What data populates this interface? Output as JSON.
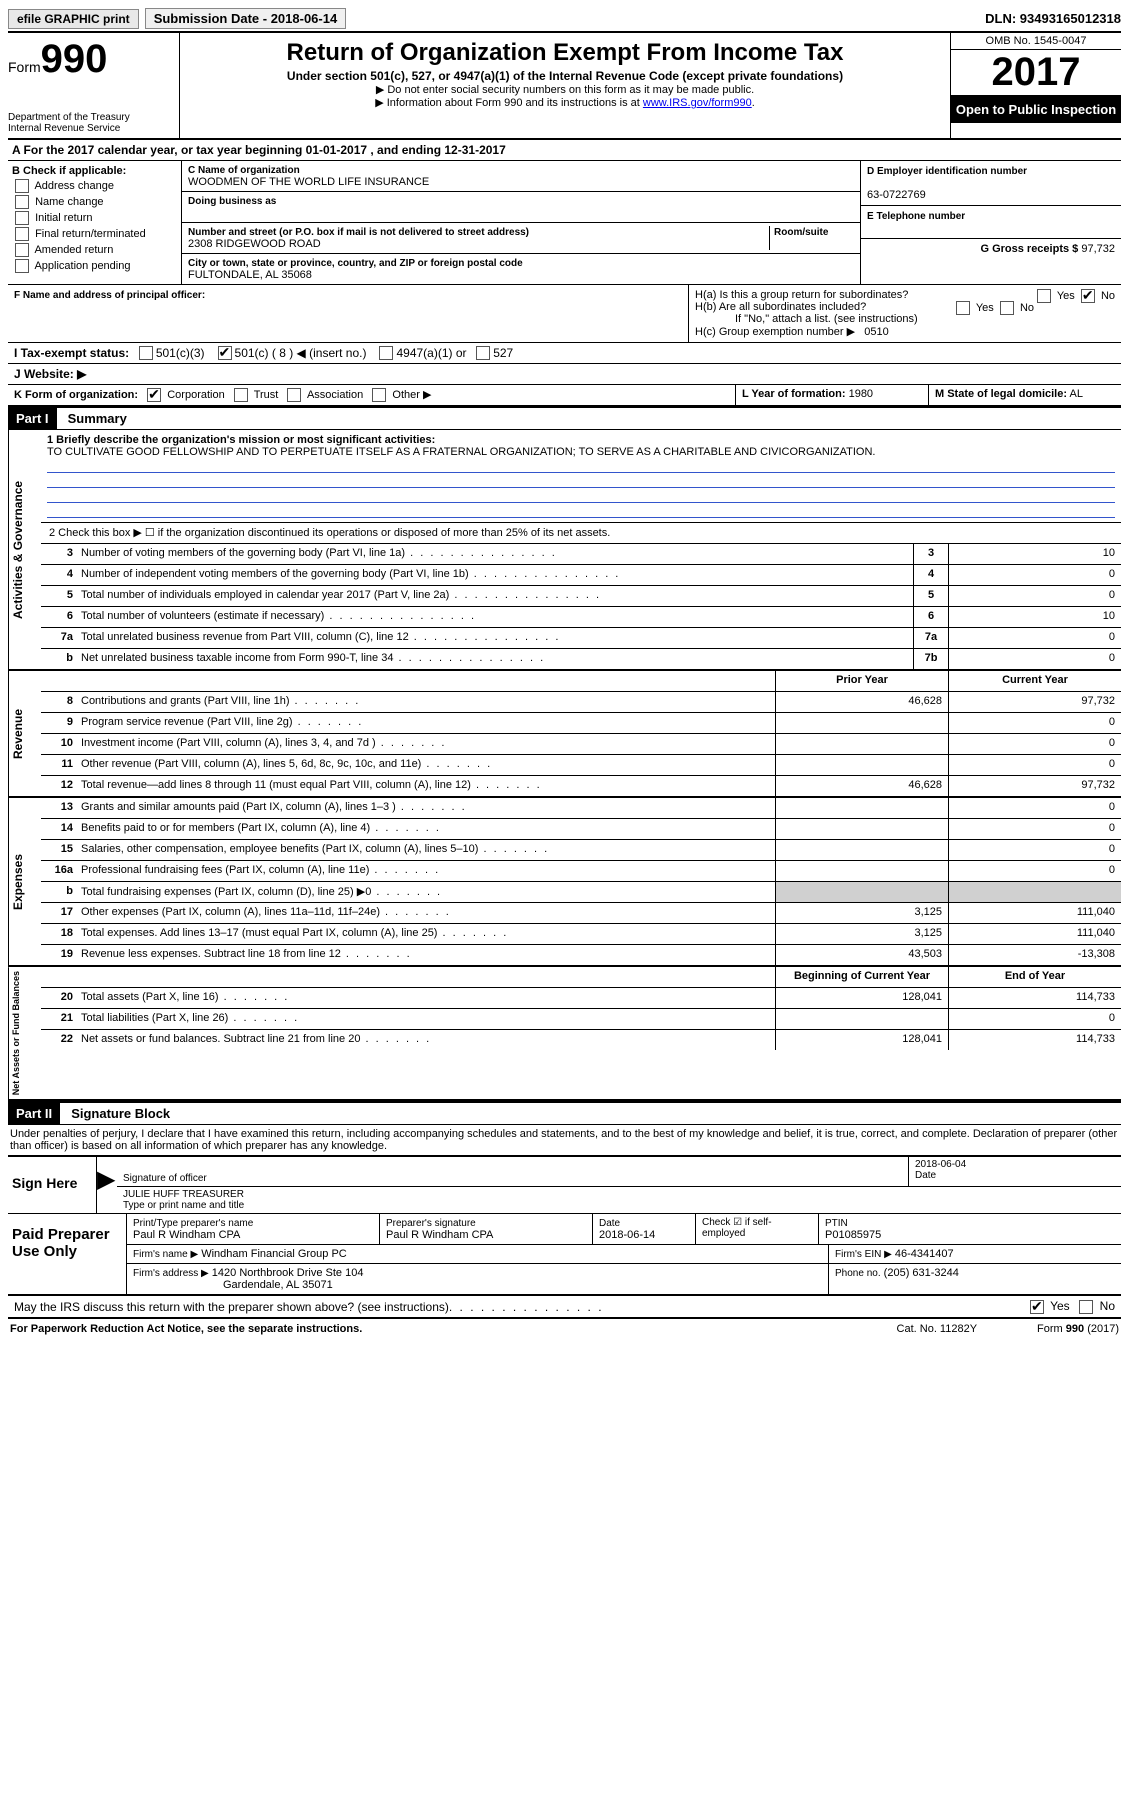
{
  "topbar": {
    "efile": "efile GRAPHIC print",
    "subdate_label": "Submission Date - 2018-06-14",
    "dln": "DLN: 93493165012318"
  },
  "header": {
    "form_word": "Form",
    "form_num": "990",
    "dept": "Department of the Treasury",
    "irs": "Internal Revenue Service",
    "title": "Return of Organization Exempt From Income Tax",
    "subtitle": "Under section 501(c), 527, or 4947(a)(1) of the Internal Revenue Code (except private foundations)",
    "note1": "▶ Do not enter social security numbers on this form as it may be made public.",
    "note2_pre": "▶ Information about Form 990 and its instructions is at ",
    "note2_link": "www.IRS.gov/form990",
    "omb": "OMB No. 1545-0047",
    "year": "2017",
    "open": "Open to Public Inspection"
  },
  "rowA": "A  For the 2017 calendar year, or tax year beginning 01-01-2017   , and ending 12-31-2017",
  "sectionB": {
    "title": "B Check if applicable:",
    "items": [
      "Address change",
      "Name change",
      "Initial return",
      "Final return/terminated",
      "Amended return",
      "Application pending"
    ]
  },
  "sectionC": {
    "name_lbl": "C Name of organization",
    "name": "WOODMEN OF THE WORLD LIFE INSURANCE",
    "dba_lbl": "Doing business as",
    "dba": "",
    "addr_lbl": "Number and street (or P.O. box if mail is not delivered to street address)",
    "room_lbl": "Room/suite",
    "addr": "2308 RIDGEWOOD ROAD",
    "city_lbl": "City or town, state or province, country, and ZIP or foreign postal code",
    "city": "FULTONDALE, AL  35068",
    "f_lbl": "F Name and address of principal officer:",
    "f_val": ""
  },
  "sectionD": {
    "ein_lbl": "D Employer identification number",
    "ein": "63-0722769",
    "tel_lbl": "E Telephone number",
    "tel": "",
    "gross_lbl": "G Gross receipts $",
    "gross": "97,732"
  },
  "sectionH": {
    "ha": "H(a)  Is this a group return for subordinates?",
    "hb": "H(b)  Are all subordinates included?",
    "hb_note": "If \"No,\" attach a list. (see instructions)",
    "hc": "H(c)  Group exemption number ▶",
    "hc_val": "0510"
  },
  "rowI": {
    "label": "I  Tax-exempt status:",
    "o1": "501(c)(3)",
    "o2": "501(c) ( 8 ) ◀ (insert no.)",
    "o3": "4947(a)(1) or",
    "o4": "527"
  },
  "rowJ": "J  Website: ▶",
  "rowK": {
    "label": "K Form of organization:",
    "o1": "Corporation",
    "o2": "Trust",
    "o3": "Association",
    "o4": "Other ▶"
  },
  "rowL": {
    "label": "L Year of formation:",
    "val": "1980"
  },
  "rowM": {
    "label": "M State of legal domicile:",
    "val": "AL"
  },
  "part1": {
    "hdr": "Part I",
    "title": "Summary",
    "line1_lbl": "1 Briefly describe the organization's mission or most significant activities:",
    "line1_txt": "TO CULTIVATE GOOD FELLOWSHIP AND TO PERPETUATE ITSELF AS A FRATERNAL ORGANIZATION; TO SERVE AS A CHARITABLE AND CIVICORGANIZATION.",
    "line2": "2  Check this box ▶ ☐  if the organization discontinued its operations or disposed of more than 25% of its net assets.",
    "vtab1": "Activities & Governance",
    "vtab2": "Revenue",
    "vtab3": "Expenses",
    "vtab4": "Net Assets or Fund Balances",
    "rows_top": [
      {
        "n": "3",
        "t": "Number of voting members of the governing body (Part VI, line 1a)",
        "box": "3",
        "v": "10"
      },
      {
        "n": "4",
        "t": "Number of independent voting members of the governing body (Part VI, line 1b)",
        "box": "4",
        "v": "0"
      },
      {
        "n": "5",
        "t": "Total number of individuals employed in calendar year 2017 (Part V, line 2a)",
        "box": "5",
        "v": "0"
      },
      {
        "n": "6",
        "t": "Total number of volunteers (estimate if necessary)",
        "box": "6",
        "v": "10"
      },
      {
        "n": "7a",
        "t": "Total unrelated business revenue from Part VIII, column (C), line 12",
        "box": "7a",
        "v": "0"
      },
      {
        "n": "b",
        "t": "Net unrelated business taxable income from Form 990-T, line 34",
        "box": "7b",
        "v": "0"
      }
    ],
    "prior_hdr": "Prior Year",
    "curr_hdr": "Current Year",
    "rev_rows": [
      {
        "n": "8",
        "t": "Contributions and grants (Part VIII, line 1h)",
        "p": "46,628",
        "c": "97,732"
      },
      {
        "n": "9",
        "t": "Program service revenue (Part VIII, line 2g)",
        "p": "",
        "c": "0"
      },
      {
        "n": "10",
        "t": "Investment income (Part VIII, column (A), lines 3, 4, and 7d )",
        "p": "",
        "c": "0"
      },
      {
        "n": "11",
        "t": "Other revenue (Part VIII, column (A), lines 5, 6d, 8c, 9c, 10c, and 11e)",
        "p": "",
        "c": "0"
      },
      {
        "n": "12",
        "t": "Total revenue—add lines 8 through 11 (must equal Part VIII, column (A), line 12)",
        "p": "46,628",
        "c": "97,732"
      }
    ],
    "exp_rows": [
      {
        "n": "13",
        "t": "Grants and similar amounts paid (Part IX, column (A), lines 1–3 )",
        "p": "",
        "c": "0"
      },
      {
        "n": "14",
        "t": "Benefits paid to or for members (Part IX, column (A), line 4)",
        "p": "",
        "c": "0"
      },
      {
        "n": "15",
        "t": "Salaries, other compensation, employee benefits (Part IX, column (A), lines 5–10)",
        "p": "",
        "c": "0"
      },
      {
        "n": "16a",
        "t": "Professional fundraising fees (Part IX, column (A), line 11e)",
        "p": "",
        "c": "0"
      },
      {
        "n": "b",
        "t": "Total fundraising expenses (Part IX, column (D), line 25) ▶0",
        "p": "shade",
        "c": "shade"
      },
      {
        "n": "17",
        "t": "Other expenses (Part IX, column (A), lines 11a–11d, 11f–24e)",
        "p": "3,125",
        "c": "111,040"
      },
      {
        "n": "18",
        "t": "Total expenses. Add lines 13–17 (must equal Part IX, column (A), line 25)",
        "p": "3,125",
        "c": "111,040"
      },
      {
        "n": "19",
        "t": "Revenue less expenses. Subtract line 18 from line 12",
        "p": "43,503",
        "c": "-13,308"
      }
    ],
    "begin_hdr": "Beginning of Current Year",
    "end_hdr": "End of Year",
    "net_rows": [
      {
        "n": "20",
        "t": "Total assets (Part X, line 16)",
        "p": "128,041",
        "c": "114,733"
      },
      {
        "n": "21",
        "t": "Total liabilities (Part X, line 26)",
        "p": "",
        "c": "0"
      },
      {
        "n": "22",
        "t": "Net assets or fund balances. Subtract line 21 from line 20",
        "p": "128,041",
        "c": "114,733"
      }
    ]
  },
  "part2": {
    "hdr": "Part II",
    "title": "Signature Block",
    "decl": "Under penalties of perjury, I declare that I have examined this return, including accompanying schedules and statements, and to the best of my knowledge and belief, it is true, correct, and complete. Declaration of preparer (other than officer) is based on all information of which preparer has any knowledge.",
    "sign_here": "Sign Here",
    "sig_officer": "Signature of officer",
    "sig_date": "2018-06-04",
    "date_lbl": "Date",
    "officer_name": "JULIE HUFF TREASURER",
    "name_lbl": "Type or print name and title"
  },
  "prep": {
    "title": "Paid Preparer Use Only",
    "name_lbl": "Print/Type preparer's name",
    "name": "Paul R Windham CPA",
    "sig_lbl": "Preparer's signature",
    "sig": "Paul R Windham CPA",
    "date_lbl": "Date",
    "date": "2018-06-14",
    "check_lbl": "Check ☑ if self-employed",
    "ptin_lbl": "PTIN",
    "ptin": "P01085975",
    "firm_name_lbl": "Firm's name    ▶",
    "firm_name": "Windham Financial Group PC",
    "firm_ein_lbl": "Firm's EIN ▶",
    "firm_ein": "46-4341407",
    "firm_addr_lbl": "Firm's address ▶",
    "firm_addr1": "1420 Northbrook Drive Ste 104",
    "firm_addr2": "Gardendale, AL  35071",
    "phone_lbl": "Phone no.",
    "phone": "(205) 631-3244"
  },
  "discuss": "May the IRS discuss this return with the preparer shown above? (see instructions)",
  "footer": {
    "pra": "For Paperwork Reduction Act Notice, see the separate instructions.",
    "cat": "Cat. No. 11282Y",
    "form": "Form 990 (2017)"
  },
  "yn": {
    "yes": "Yes",
    "no": "No"
  }
}
